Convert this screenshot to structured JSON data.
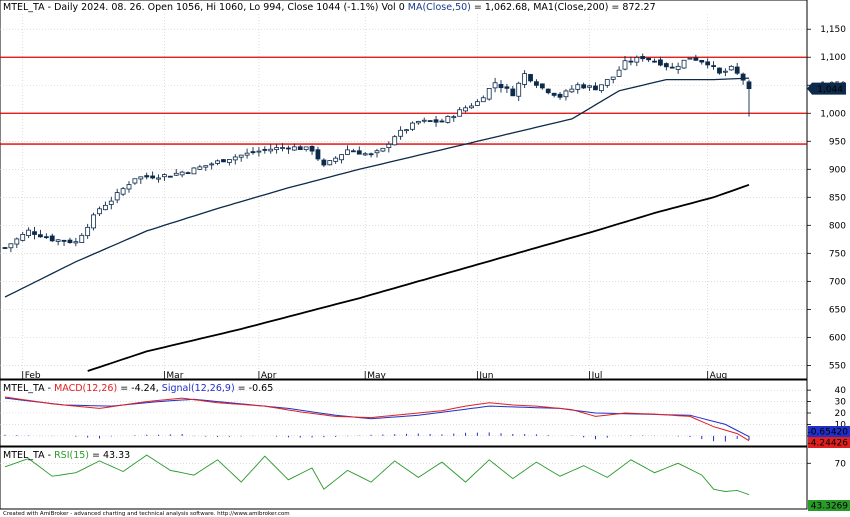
{
  "price_panel": {
    "header": {
      "symbol": "MTEL_TA",
      "text": " - Daily 2024. 08. 26. Open 1056, Hi 1060, Lo 994, Close 1044 (-1.1%) Vol 0 ",
      "ma1_label": "MA(Close,50)",
      "ma1_value": " = 1,062.68, ",
      "ma2_label": "MA1(Close,200)",
      "ma2_value": " = 872.27"
    },
    "last_price_label": "1,044",
    "colors": {
      "candle": "#0d2a4a",
      "ma50": "#0d2a4a",
      "ma200": "#000000",
      "hline": "#dd0000",
      "grid": "#c8c8c8"
    }
  },
  "macd_panel": {
    "header": {
      "symbol": "MTEL_TA",
      "prefix": " - ",
      "macd_label": "MACD(12,26)",
      "macd_value": " = -4.24, ",
      "signal_label": "Signal(12,26,9)",
      "signal_value": " = -0.65"
    },
    "signal_box": "-0.65420",
    "macd_box": "-4.24426",
    "colors": {
      "macd": "#e02020",
      "signal": "#2030c8",
      "hist": "#2030c8"
    }
  },
  "rsi_panel": {
    "header": {
      "symbol": "MTEL_TA",
      "prefix": " - ",
      "rsi_label": "RSI(15)",
      "rsi_value": " = 43.33"
    },
    "value_box": "43.3269",
    "colors": {
      "rsi": "#2a9a2a",
      "box": "#2a9a2a"
    }
  },
  "footer": "Created with AmiBroker - advanced charting and technical analysis software. http://www.amibroker.com",
  "chart_data": [
    {
      "type": "candlestick",
      "ylim": [
        540,
        1170
      ],
      "yticks": [
        550,
        600,
        650,
        700,
        750,
        800,
        850,
        900,
        950,
        1000,
        1050,
        1100,
        1150
      ],
      "ytick_labels": [
        "550",
        "600",
        "650",
        "700",
        "750",
        "800",
        "850",
        "900",
        "950",
        "1,000",
        "1,050",
        "1,100",
        "1,150"
      ],
      "month_labels": [
        "Feb",
        "Mar",
        "Apr",
        "May",
        "Jun",
        "Jul",
        "Aug"
      ],
      "month_start_index": [
        3,
        27,
        43,
        61,
        80,
        99,
        119
      ],
      "horizontal_lines": [
        1100,
        1000,
        945
      ],
      "ma50_anchors": [
        [
          0,
          672
        ],
        [
          12,
          735
        ],
        [
          24,
          790
        ],
        [
          36,
          830
        ],
        [
          48,
          867
        ],
        [
          60,
          900
        ],
        [
          72,
          930
        ],
        [
          84,
          960
        ],
        [
          96,
          990
        ],
        [
          104,
          1040
        ],
        [
          112,
          1060
        ],
        [
          120,
          1060
        ],
        [
          126,
          1062.68
        ]
      ],
      "ma200_anchors": [
        [
          14,
          540
        ],
        [
          24,
          575
        ],
        [
          40,
          615
        ],
        [
          60,
          670
        ],
        [
          80,
          730
        ],
        [
          100,
          790
        ],
        [
          110,
          822
        ],
        [
          120,
          850
        ],
        [
          126,
          872.27
        ]
      ],
      "close_anchors": [
        [
          0,
          760
        ],
        [
          4,
          790
        ],
        [
          8,
          775
        ],
        [
          12,
          770
        ],
        [
          16,
          830
        ],
        [
          18,
          845
        ],
        [
          22,
          885
        ],
        [
          28,
          890
        ],
        [
          32,
          900
        ],
        [
          38,
          920
        ],
        [
          44,
          935
        ],
        [
          48,
          940
        ],
        [
          52,
          935
        ],
        [
          54,
          905
        ],
        [
          58,
          935
        ],
        [
          62,
          925
        ],
        [
          64,
          935
        ],
        [
          66,
          960
        ],
        [
          70,
          985
        ],
        [
          74,
          985
        ],
        [
          78,
          1010
        ],
        [
          80,
          1020
        ],
        [
          83,
          1055
        ],
        [
          86,
          1035
        ],
        [
          88,
          1070
        ],
        [
          91,
          1045
        ],
        [
          94,
          1030
        ],
        [
          97,
          1050
        ],
        [
          100,
          1045
        ],
        [
          103,
          1065
        ],
        [
          105,
          1090
        ],
        [
          108,
          1100
        ],
        [
          111,
          1090
        ],
        [
          113,
          1080
        ],
        [
          116,
          1100
        ],
        [
          119,
          1090
        ],
        [
          121,
          1070
        ],
        [
          123,
          1080
        ],
        [
          125,
          1060
        ],
        [
          126,
          1044
        ]
      ],
      "last_candle": {
        "open": 1056,
        "high": 1060,
        "low": 994,
        "close": 1044
      }
    },
    {
      "type": "line",
      "title": "MACD",
      "ylim": [
        -8,
        48
      ],
      "yticks": [
        0,
        10,
        20,
        30,
        40
      ],
      "series": [
        {
          "name": "MACD(12,26)",
          "anchors": [
            [
              0,
              34
            ],
            [
              8,
              28
            ],
            [
              16,
              24
            ],
            [
              24,
              30
            ],
            [
              30,
              33
            ],
            [
              36,
              29
            ],
            [
              44,
              26
            ],
            [
              50,
              21
            ],
            [
              56,
              17
            ],
            [
              62,
              16
            ],
            [
              68,
              19
            ],
            [
              74,
              22
            ],
            [
              78,
              26
            ],
            [
              82,
              29
            ],
            [
              86,
              27
            ],
            [
              90,
              26
            ],
            [
              96,
              23
            ],
            [
              100,
              17
            ],
            [
              105,
              20
            ],
            [
              110,
              19
            ],
            [
              116,
              17
            ],
            [
              120,
              8
            ],
            [
              124,
              2
            ],
            [
              126,
              -4.24
            ]
          ]
        },
        {
          "name": "Signal(12,26,9)",
          "anchors": [
            [
              0,
              33
            ],
            [
              10,
              27
            ],
            [
              18,
              26
            ],
            [
              26,
              30
            ],
            [
              32,
              32
            ],
            [
              40,
              28
            ],
            [
              48,
              24
            ],
            [
              56,
              18
            ],
            [
              62,
              15
            ],
            [
              70,
              18
            ],
            [
              76,
              22
            ],
            [
              82,
              26
            ],
            [
              88,
              25
            ],
            [
              94,
              24
            ],
            [
              100,
              20
            ],
            [
              108,
              19
            ],
            [
              116,
              18
            ],
            [
              122,
              10
            ],
            [
              126,
              -0.65
            ]
          ]
        }
      ]
    },
    {
      "type": "line",
      "title": "RSI",
      "ylim": [
        32,
        83
      ],
      "yticks": [
        70
      ],
      "series": [
        {
          "name": "RSI(15)",
          "anchors": [
            [
              0,
              67
            ],
            [
              4,
              74
            ],
            [
              8,
              59
            ],
            [
              12,
              62
            ],
            [
              16,
              72
            ],
            [
              20,
              63
            ],
            [
              24,
              77
            ],
            [
              28,
              64
            ],
            [
              32,
              60
            ],
            [
              36,
              73
            ],
            [
              40,
              54
            ],
            [
              44,
              76
            ],
            [
              48,
              56
            ],
            [
              52,
              66
            ],
            [
              54,
              48
            ],
            [
              58,
              64
            ],
            [
              62,
              54
            ],
            [
              66,
              72
            ],
            [
              70,
              58
            ],
            [
              74,
              71
            ],
            [
              78,
              54
            ],
            [
              82,
              73
            ],
            [
              86,
              57
            ],
            [
              90,
              71
            ],
            [
              94,
              59
            ],
            [
              98,
              68
            ],
            [
              102,
              58
            ],
            [
              106,
              73
            ],
            [
              110,
              62
            ],
            [
              114,
              70
            ],
            [
              118,
              60
            ],
            [
              120,
              48
            ],
            [
              122,
              46
            ],
            [
              124,
              47
            ],
            [
              126,
              43.33
            ]
          ]
        }
      ]
    }
  ]
}
